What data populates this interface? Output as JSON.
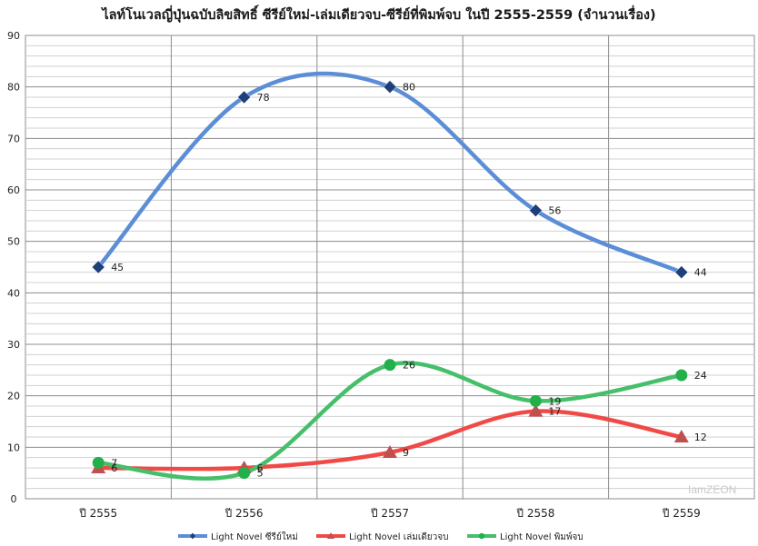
{
  "chart_data": {
    "type": "line",
    "title": "ไลท์โนเวลญี่ปุ่นฉบับลิขสิทธิ์ ซีรีย์ใหม่-เล่มเดียวจบ-ซีรีย์ที่พิมพ์จบ ในปี 2555-2559 (จำนวนเรื่อง)",
    "categories": [
      "ปี 2555",
      "ปี 2556",
      "ปี 2557",
      "ปี 2558",
      "ปี 2559"
    ],
    "ylim": [
      0,
      90
    ],
    "yticks": [
      0,
      10,
      20,
      30,
      40,
      50,
      60,
      70,
      80,
      90
    ],
    "grid": true,
    "smooth": true,
    "legend_position": "bottom",
    "series": [
      {
        "name": "Light Novel ซีรีย์ใหม่",
        "values": [
          45,
          78,
          80,
          56,
          44
        ],
        "color": "#5b8ed6",
        "marker": "diamond",
        "marker_color": "#1f3f7a"
      },
      {
        "name": "Light Novel เล่มเดียวจบ",
        "values": [
          6,
          6,
          9,
          17,
          12
        ],
        "color": "#f04a46",
        "marker": "triangle",
        "marker_color": "#c0504d"
      },
      {
        "name": "Light Novel พิมพ์จบ",
        "values": [
          7,
          5,
          26,
          19,
          24
        ],
        "color": "#45bf6a",
        "marker": "circle",
        "marker_color": "#22b04a"
      }
    ]
  },
  "watermark": "IamZEON"
}
